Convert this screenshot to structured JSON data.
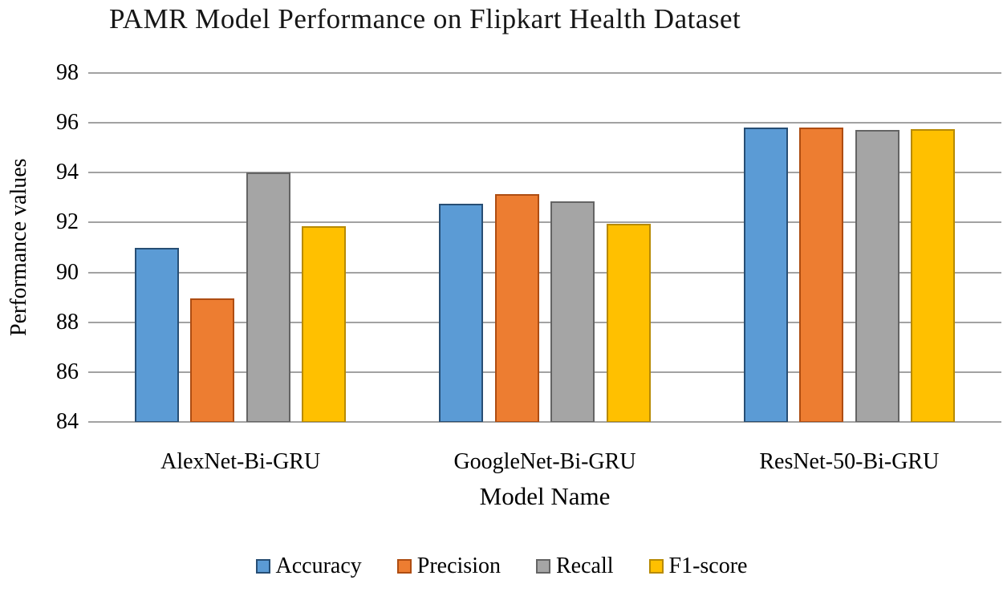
{
  "chart_data": {
    "type": "bar",
    "title": "PAMR Model Performance on Flipkart Health Dataset",
    "xlabel": "Model Name",
    "ylabel": "Performance values",
    "categories": [
      "AlexNet-Bi-GRU",
      "GoogleNet-Bi-GRU",
      "ResNet-50-Bi-GRU"
    ],
    "series": [
      {
        "name": "Accuracy",
        "color": "#5B9BD5",
        "border": "#274E74",
        "values": [
          91.0,
          92.75,
          95.8
        ]
      },
      {
        "name": "Precision",
        "color": "#ED7D31",
        "border": "#AE4D12",
        "values": [
          88.95,
          93.15,
          95.8
        ]
      },
      {
        "name": "Recall",
        "color": "#A5A5A5",
        "border": "#646464",
        "values": [
          94.0,
          92.85,
          95.7
        ]
      },
      {
        "name": "F1-score",
        "color": "#FFC000",
        "border": "#B78A00",
        "values": [
          91.85,
          91.95,
          95.75
        ]
      }
    ],
    "ylim": [
      84,
      98
    ],
    "yticks": [
      84,
      86,
      88,
      90,
      92,
      94,
      96,
      98
    ],
    "grid": true,
    "legend_position": "bottom",
    "gridline_color": "#a2a2a2"
  }
}
